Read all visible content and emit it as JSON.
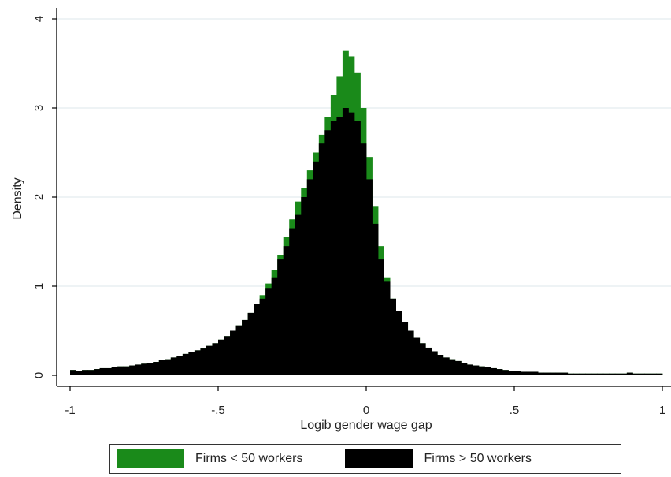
{
  "chart_data": {
    "type": "histogram",
    "xlabel": "Logib gender wage gap",
    "ylabel": "Density",
    "xlim": [
      -1,
      1
    ],
    "ylim": [
      0,
      4
    ],
    "xticks": [
      -1,
      -0.5,
      0,
      0.5,
      1
    ],
    "xtick_labels": [
      "-1",
      "-.5",
      "0",
      ".5",
      "1"
    ],
    "yticks": [
      0,
      1,
      2,
      3,
      4
    ],
    "ytick_labels": [
      "0",
      "1",
      "2",
      "3",
      "4"
    ],
    "grid": "horizontal",
    "legend_position": "bottom",
    "bin_start": -1,
    "bin_width": 0.02,
    "series": [
      {
        "name": "Firms < 50 workers",
        "color": "#1a8a1a",
        "values": [
          0.06,
          0.05,
          0.06,
          0.06,
          0.07,
          0.08,
          0.08,
          0.09,
          0.1,
          0.1,
          0.11,
          0.12,
          0.13,
          0.14,
          0.15,
          0.17,
          0.18,
          0.2,
          0.22,
          0.24,
          0.26,
          0.28,
          0.3,
          0.33,
          0.36,
          0.4,
          0.44,
          0.5,
          0.56,
          0.62,
          0.7,
          0.8,
          0.9,
          1.03,
          1.18,
          1.35,
          1.55,
          1.75,
          1.95,
          2.1,
          2.3,
          2.5,
          2.7,
          2.9,
          3.15,
          3.35,
          3.64,
          3.58,
          3.4,
          3.0,
          2.45,
          1.9,
          1.45,
          1.1,
          0.86,
          0.72,
          0.6,
          0.5,
          0.42,
          0.36,
          0.31,
          0.27,
          0.23,
          0.2,
          0.18,
          0.16,
          0.14,
          0.12,
          0.11,
          0.1,
          0.09,
          0.08,
          0.07,
          0.06,
          0.05,
          0.05,
          0.04,
          0.04,
          0.04,
          0.03,
          0.03,
          0.03,
          0.03,
          0.03,
          0.02,
          0.02,
          0.02,
          0.02,
          0.02,
          0.02,
          0.02,
          0.02,
          0.02,
          0.02,
          0.03,
          0.02,
          0.02,
          0.02,
          0.02,
          0.02
        ]
      },
      {
        "name": "Firms > 50 workers",
        "color": "#000000",
        "values": [
          0.06,
          0.05,
          0.06,
          0.06,
          0.07,
          0.08,
          0.08,
          0.09,
          0.1,
          0.1,
          0.11,
          0.12,
          0.13,
          0.14,
          0.15,
          0.17,
          0.18,
          0.2,
          0.22,
          0.24,
          0.26,
          0.28,
          0.3,
          0.33,
          0.36,
          0.4,
          0.44,
          0.5,
          0.56,
          0.62,
          0.7,
          0.8,
          0.86,
          0.98,
          1.1,
          1.3,
          1.45,
          1.65,
          1.8,
          2.0,
          2.2,
          2.4,
          2.6,
          2.75,
          2.85,
          2.9,
          3.0,
          2.95,
          2.85,
          2.6,
          2.2,
          1.7,
          1.3,
          1.05,
          0.86,
          0.72,
          0.6,
          0.5,
          0.42,
          0.36,
          0.31,
          0.27,
          0.23,
          0.2,
          0.18,
          0.16,
          0.14,
          0.12,
          0.11,
          0.1,
          0.09,
          0.08,
          0.07,
          0.06,
          0.05,
          0.05,
          0.04,
          0.04,
          0.04,
          0.03,
          0.03,
          0.03,
          0.03,
          0.03,
          0.02,
          0.02,
          0.02,
          0.02,
          0.02,
          0.02,
          0.02,
          0.02,
          0.02,
          0.02,
          0.03,
          0.02,
          0.02,
          0.02,
          0.02,
          0.02
        ]
      }
    ]
  },
  "legend": {
    "items": [
      {
        "label": "Firms < 50 workers",
        "color": "#1a8a1a"
      },
      {
        "label": "Firms > 50 workers",
        "color": "#000000"
      }
    ]
  }
}
